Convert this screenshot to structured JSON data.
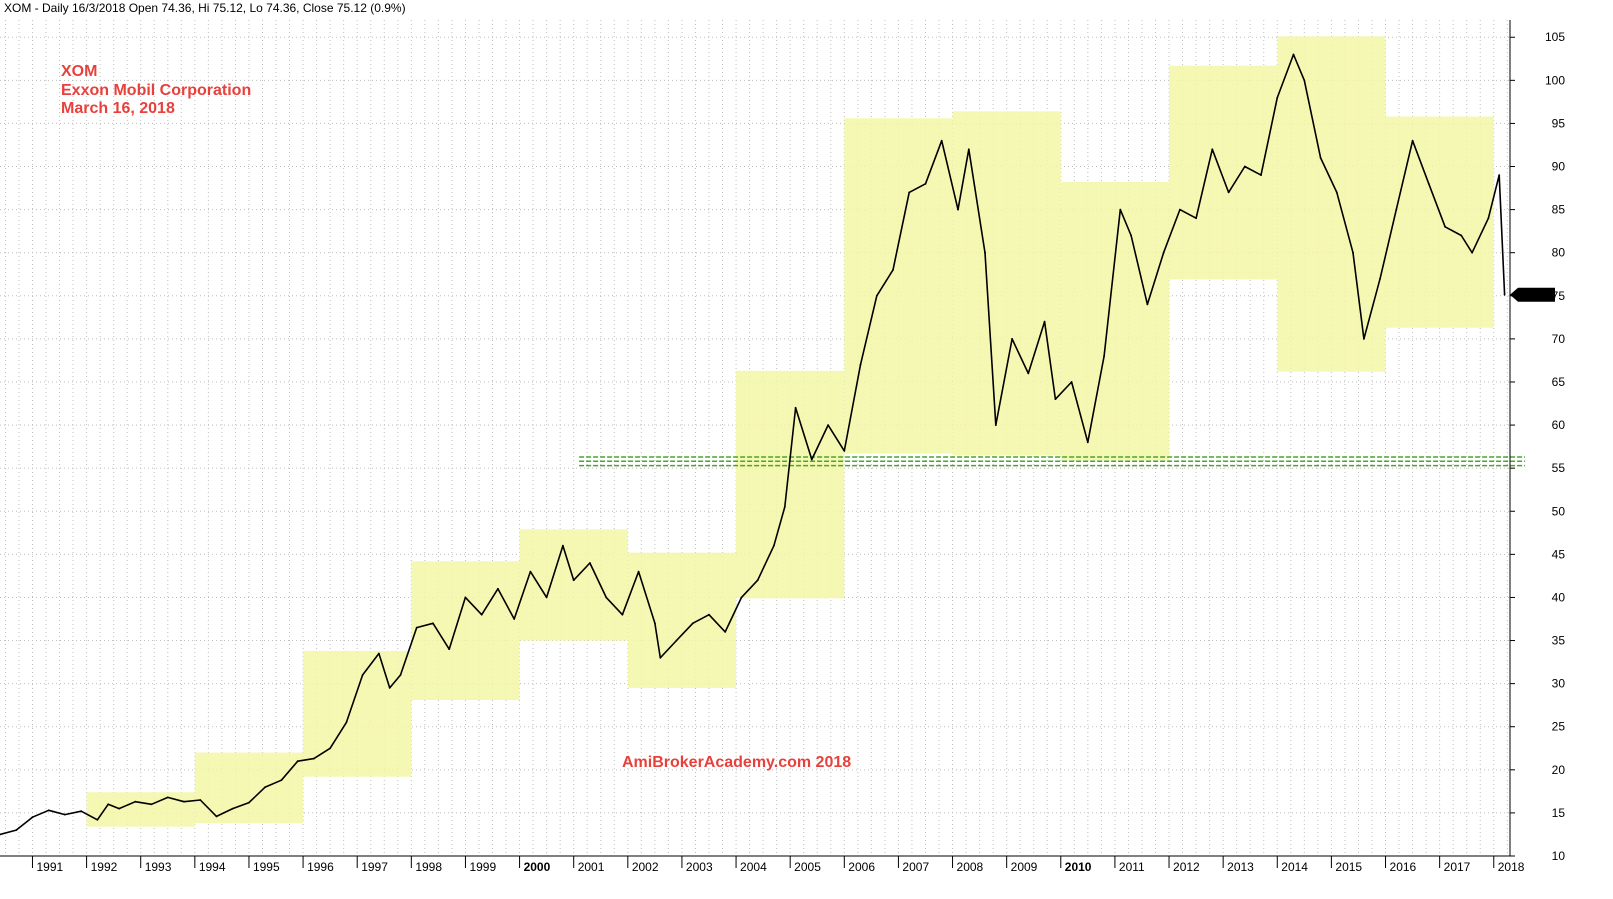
{
  "header": "XOM - Daily 16/3/2018 Open 74.36, Hi 75.12, Lo 74.36, Close 75.12 (0.9%)",
  "annotations": {
    "symbol": "XOM",
    "company": "Exxon Mobil Corporation",
    "date": "March 16, 2018",
    "watermark": "AmiBrokerAcademy.com  2018"
  },
  "colors": {
    "price_line": "#000000",
    "range_box": "#f3f7a6",
    "annotation_text": "#e8413c",
    "support_line": "#4aa52e",
    "grid": "#bdbdbd",
    "last_price_badge": "#000000"
  },
  "chart_data": {
    "type": "line",
    "title": "XOM",
    "ylim": [
      10,
      107
    ],
    "xlim": [
      1990.4,
      2018.3
    ],
    "y_ticks": [
      10,
      15,
      20,
      25,
      30,
      35,
      40,
      45,
      50,
      55,
      60,
      65,
      70,
      75,
      80,
      85,
      90,
      95,
      100,
      105
    ],
    "x_ticks": [
      {
        "label": "1991",
        "x": 1991,
        "bold": false
      },
      {
        "label": "1992",
        "x": 1992,
        "bold": false
      },
      {
        "label": "1993",
        "x": 1993,
        "bold": false
      },
      {
        "label": "1994",
        "x": 1994,
        "bold": false
      },
      {
        "label": "1995",
        "x": 1995,
        "bold": false
      },
      {
        "label": "1996",
        "x": 1996,
        "bold": false
      },
      {
        "label": "1997",
        "x": 1997,
        "bold": false
      },
      {
        "label": "1998",
        "x": 1998,
        "bold": false
      },
      {
        "label": "1999",
        "x": 1999,
        "bold": false
      },
      {
        "label": "2000",
        "x": 2000,
        "bold": true
      },
      {
        "label": "2001",
        "x": 2001,
        "bold": false
      },
      {
        "label": "2002",
        "x": 2002,
        "bold": false
      },
      {
        "label": "2003",
        "x": 2003,
        "bold": false
      },
      {
        "label": "2004",
        "x": 2004,
        "bold": false
      },
      {
        "label": "2005",
        "x": 2005,
        "bold": false
      },
      {
        "label": "2006",
        "x": 2006,
        "bold": false
      },
      {
        "label": "2007",
        "x": 2007,
        "bold": false
      },
      {
        "label": "2008",
        "x": 2008,
        "bold": false
      },
      {
        "label": "2009",
        "x": 2009,
        "bold": false
      },
      {
        "label": "2010",
        "x": 2010,
        "bold": true
      },
      {
        "label": "2011",
        "x": 2011,
        "bold": false
      },
      {
        "label": "2012",
        "x": 2012,
        "bold": false
      },
      {
        "label": "2013",
        "x": 2013,
        "bold": false
      },
      {
        "label": "2014",
        "x": 2014,
        "bold": false
      },
      {
        "label": "2015",
        "x": 2015,
        "bold": false
      },
      {
        "label": "2016",
        "x": 2016,
        "bold": false
      },
      {
        "label": "2017",
        "x": 2017,
        "bold": false
      },
      {
        "label": "2018",
        "x": 2018,
        "bold": false
      }
    ],
    "last_price": {
      "x": 2018.2,
      "y": 75.12,
      "label": "75.12"
    },
    "yearly_range_boxes": [
      {
        "x0": 1992,
        "x1": 1994,
        "low": 13.4,
        "high": 17.4
      },
      {
        "x0": 1994,
        "x1": 1996,
        "low": 13.8,
        "high": 22.0
      },
      {
        "x0": 1996,
        "x1": 1998,
        "low": 19.2,
        "high": 33.8
      },
      {
        "x0": 1998,
        "x1": 2000,
        "low": 28.1,
        "high": 44.2
      },
      {
        "x0": 2000,
        "x1": 2002,
        "low": 35.0,
        "high": 47.9
      },
      {
        "x0": 2002,
        "x1": 2004,
        "low": 29.5,
        "high": 45.2
      },
      {
        "x0": 2004,
        "x1": 2006,
        "low": 39.9,
        "high": 66.3
      },
      {
        "x0": 2006,
        "x1": 2008,
        "low": 56.7,
        "high": 95.6
      },
      {
        "x0": 2008,
        "x1": 2010,
        "low": 56.5,
        "high": 96.4
      },
      {
        "x0": 2010,
        "x1": 2012,
        "low": 55.9,
        "high": 88.2
      },
      {
        "x0": 2012,
        "x1": 2014,
        "low": 76.9,
        "high": 101.7
      },
      {
        "x0": 2014,
        "x1": 2016,
        "low": 66.2,
        "high": 105.1
      },
      {
        "x0": 2016,
        "x1": 2018,
        "low": 71.3,
        "high": 95.8
      }
    ],
    "support_lines": [
      {
        "x_start": 2001.1,
        "y": 56.3
      },
      {
        "x_start": 2001.1,
        "y": 55.8
      },
      {
        "x_start": 2001.1,
        "y": 55.3
      }
    ],
    "series": [
      {
        "values_x": [
          1990.4,
          1990.7,
          1991.0,
          1991.3,
          1991.6,
          1991.9,
          1992.2,
          1992.4,
          1992.6,
          1992.9,
          1993.2,
          1993.5,
          1993.8,
          1994.1,
          1994.4,
          1994.7,
          1995.0,
          1995.3,
          1995.6,
          1995.9,
          1996.2,
          1996.5,
          1996.8,
          1997.1,
          1997.4,
          1997.6,
          1997.8,
          1998.1,
          1998.4,
          1998.7,
          1999.0,
          1999.3,
          1999.6,
          1999.9,
          2000.2,
          2000.5,
          2000.8,
          2001.0,
          2001.3,
          2001.6,
          2001.9,
          2002.2,
          2002.5,
          2002.6,
          2002.9,
          2003.2,
          2003.5,
          2003.8,
          2004.1,
          2004.4,
          2004.7,
          2004.9,
          2005.1,
          2005.4,
          2005.7,
          2006.0,
          2006.3,
          2006.6,
          2006.9,
          2007.2,
          2007.5,
          2007.8,
          2008.1,
          2008.3,
          2008.6,
          2008.8,
          2009.1,
          2009.4,
          2009.7,
          2009.9,
          2010.2,
          2010.5,
          2010.8,
          2011.1,
          2011.3,
          2011.6,
          2011.9,
          2012.2,
          2012.5,
          2012.8,
          2013.1,
          2013.4,
          2013.7,
          2014.0,
          2014.3,
          2014.5,
          2014.8,
          2015.1,
          2015.4,
          2015.6,
          2015.9,
          2016.2,
          2016.5,
          2016.8,
          2017.1,
          2017.4,
          2017.6,
          2017.9,
          2018.1,
          2018.2
        ],
        "values_y": [
          12.5,
          13.0,
          14.5,
          15.3,
          14.8,
          15.2,
          14.2,
          16.0,
          15.5,
          16.3,
          16.0,
          16.8,
          16.3,
          16.5,
          14.6,
          15.5,
          16.2,
          18.0,
          18.8,
          21.0,
          21.3,
          22.5,
          25.5,
          31.0,
          33.5,
          29.5,
          31.0,
          36.5,
          37.0,
          34.0,
          40.0,
          38.0,
          41.0,
          37.5,
          43.0,
          40.0,
          46.0,
          42.0,
          44.0,
          40.0,
          38.0,
          43.0,
          37.0,
          33.0,
          35.0,
          37.0,
          38.0,
          36.0,
          40.0,
          42.0,
          46.0,
          50.5,
          62.0,
          56.0,
          60.0,
          57.0,
          67.0,
          75.0,
          78.0,
          87.0,
          88.0,
          93.0,
          85.0,
          92.0,
          80.0,
          60.0,
          70.0,
          66.0,
          72.0,
          63.0,
          65.0,
          58.0,
          68.0,
          85.0,
          82.0,
          74.0,
          80.0,
          85.0,
          84.0,
          92.0,
          87.0,
          90.0,
          89.0,
          98.0,
          103.0,
          100.0,
          91.0,
          87.0,
          80.0,
          70.0,
          77.0,
          85.0,
          93.0,
          88.0,
          83.0,
          82.0,
          80.0,
          84.0,
          89.0,
          75.12
        ]
      }
    ]
  }
}
